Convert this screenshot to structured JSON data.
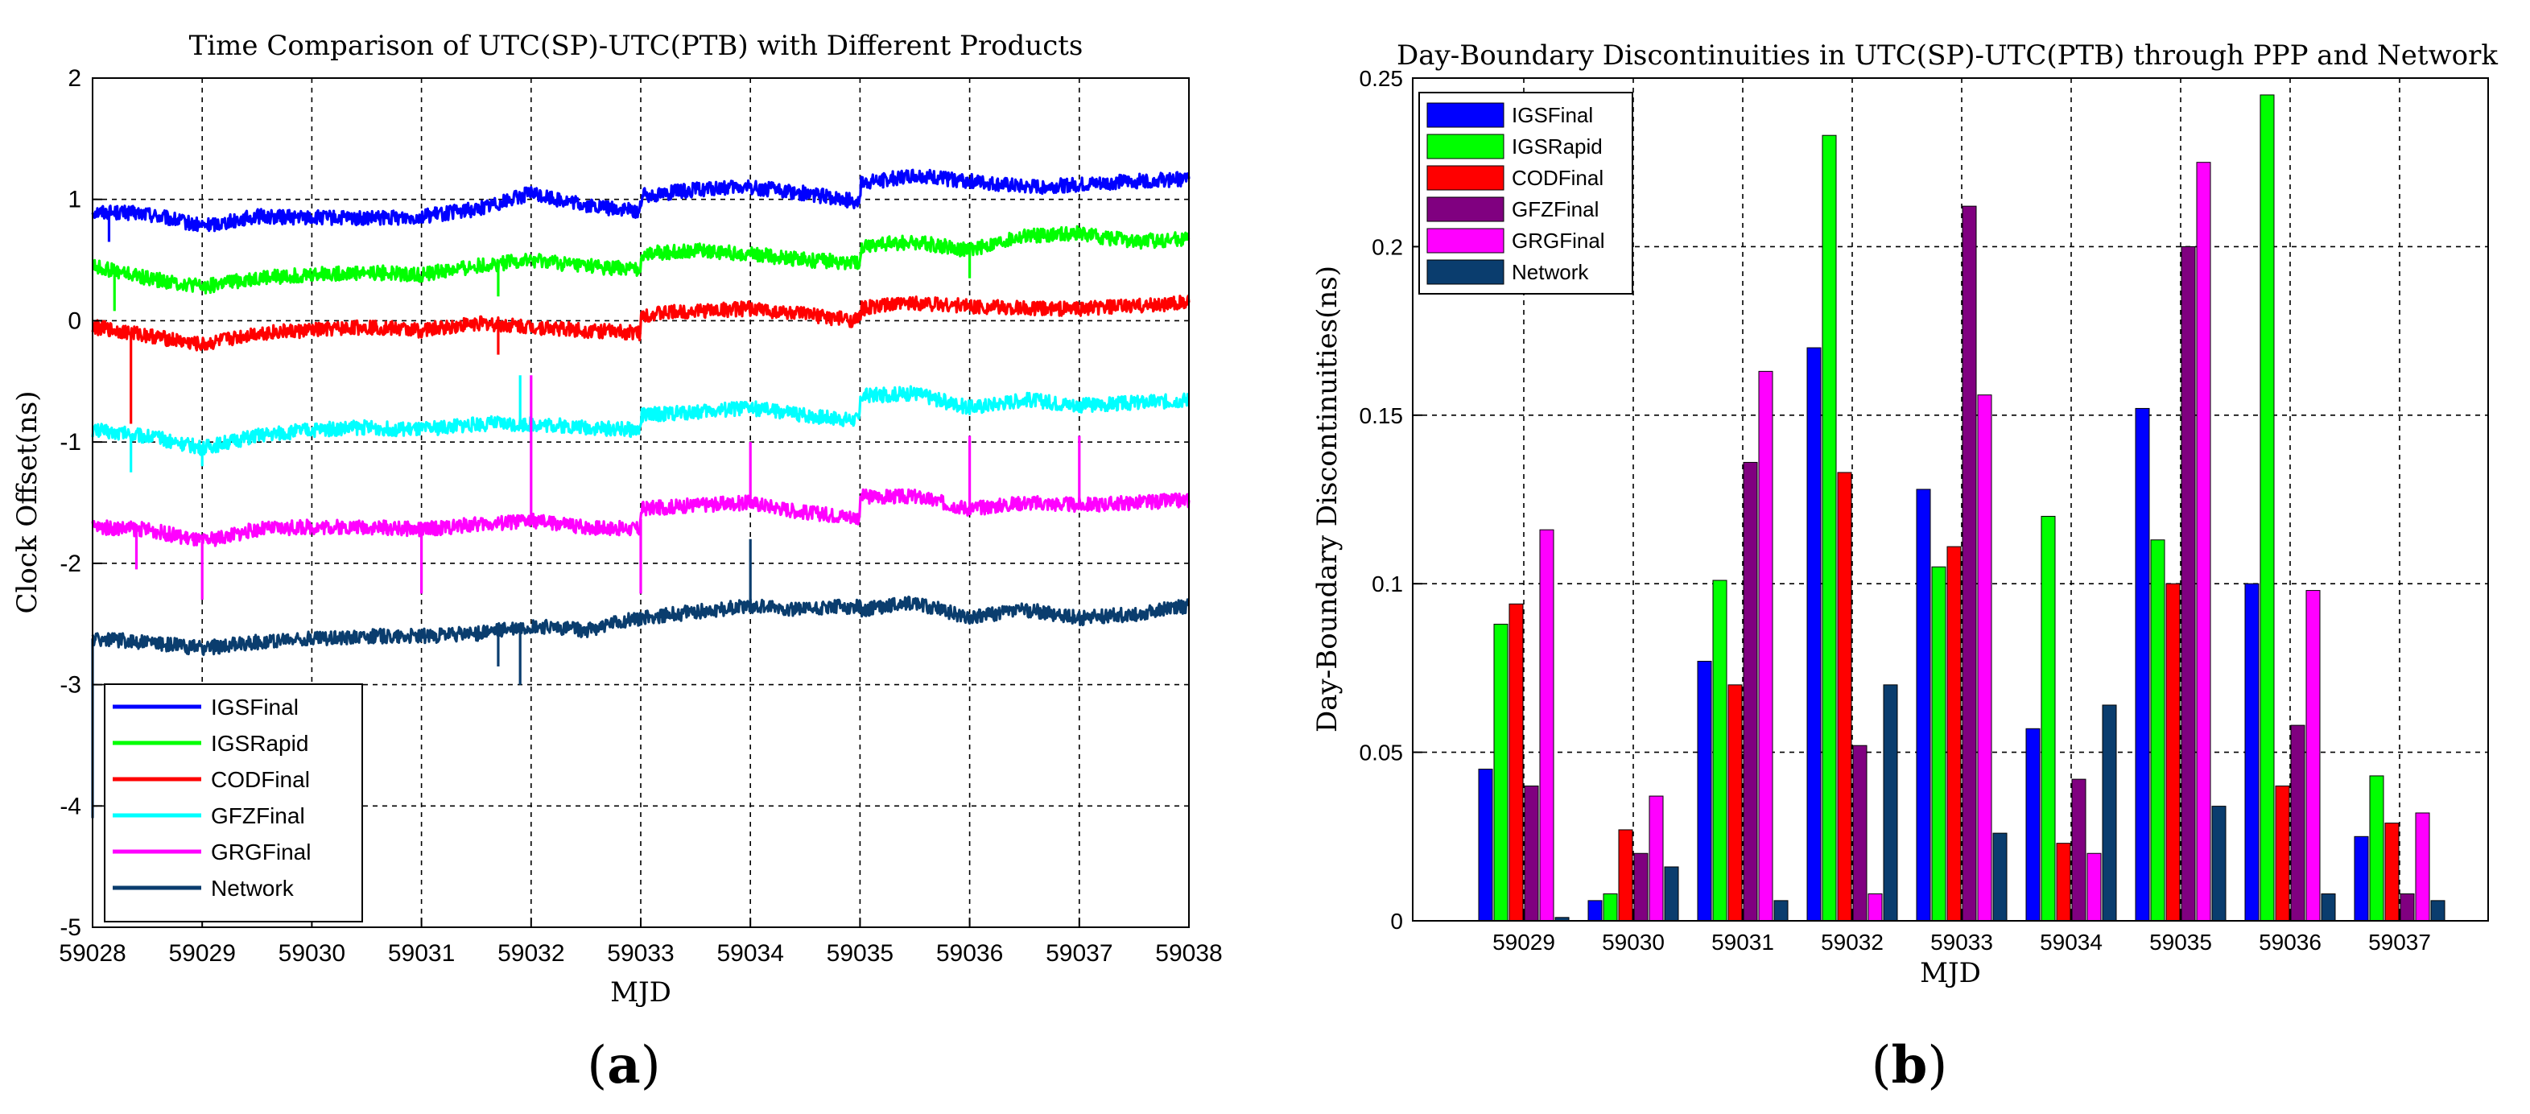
{
  "colors": {
    "IGSFinal": "#0000ff",
    "IGSRapid": "#00ff00",
    "CODFinal": "#ff0000",
    "GFZFinal": "#00ffff",
    "GRGFinal": "#ff00ff",
    "Network": "#0a3d6e",
    "GFZFinal_bar": "#800080",
    "Network_bar": "#0a3d6e"
  },
  "chart_data": [
    {
      "type": "line",
      "title": "Time Comparison of UTC(SP)-UTC(PTB) with Different Products",
      "xlabel": "MJD",
      "ylabel": "Clock Offset(ns)",
      "xlim": [
        59028,
        59038
      ],
      "ylim": [
        -5,
        2
      ],
      "xticks": [
        "59028",
        "59029",
        "59030",
        "59031",
        "59032",
        "59033",
        "59034",
        "59035",
        "59036",
        "59037",
        "59038"
      ],
      "yticks": [
        "2",
        "1",
        "0",
        "-1",
        "-2",
        "-3",
        "-4",
        "-5"
      ],
      "grid": true,
      "legend_position": "bottom-left",
      "series": [
        {
          "name": "IGSFinal",
          "x": [
            59028,
            59028.5,
            59029,
            59029.5,
            59030,
            59030.5,
            59031,
            59031.5,
            59032,
            59032.5,
            59032.99,
            59033.01,
            59033.5,
            59034,
            59034.5,
            59034.99,
            59035.01,
            59035.5,
            59036,
            59036.5,
            59037,
            59037.5,
            59038
          ],
          "y": [
            0.9,
            0.88,
            0.78,
            0.86,
            0.85,
            0.84,
            0.86,
            0.92,
            1.05,
            0.95,
            0.9,
            1.03,
            1.08,
            1.1,
            1.05,
            0.98,
            1.13,
            1.2,
            1.15,
            1.1,
            1.12,
            1.15,
            1.17
          ]
        },
        {
          "name": "IGSRapid",
          "x": [
            59028,
            59028.5,
            59029,
            59029.5,
            59030,
            59030.5,
            59031,
            59031.5,
            59032,
            59032.5,
            59032.99,
            59033.01,
            59033.5,
            59034,
            59034.5,
            59034.99,
            59035.01,
            59035.5,
            59036,
            59036.5,
            59037,
            59037.5,
            59038
          ],
          "y": [
            0.45,
            0.35,
            0.28,
            0.35,
            0.38,
            0.4,
            0.38,
            0.45,
            0.5,
            0.45,
            0.42,
            0.55,
            0.58,
            0.55,
            0.5,
            0.48,
            0.62,
            0.65,
            0.58,
            0.7,
            0.72,
            0.65,
            0.68
          ]
        },
        {
          "name": "CODFinal",
          "x": [
            59028,
            59028.5,
            59029,
            59029.5,
            59030,
            59030.5,
            59031,
            59031.5,
            59032,
            59032.5,
            59032.99,
            59033.01,
            59033.5,
            59034,
            59034.5,
            59034.99,
            59035.01,
            59035.5,
            59036,
            59036.5,
            59037,
            59037.5,
            59038
          ],
          "y": [
            -0.05,
            -0.12,
            -0.2,
            -0.1,
            -0.08,
            -0.05,
            -0.08,
            -0.02,
            -0.05,
            -0.08,
            -0.1,
            0.05,
            0.08,
            0.1,
            0.05,
            0.0,
            0.1,
            0.15,
            0.12,
            0.1,
            0.1,
            0.12,
            0.15
          ]
        },
        {
          "name": "GFZFinal",
          "x": [
            59028,
            59028.5,
            59029,
            59029.5,
            59030,
            59030.5,
            59031,
            59031.5,
            59032,
            59032.5,
            59032.99,
            59033.01,
            59033.5,
            59034,
            59034.5,
            59034.99,
            59035.01,
            59035.5,
            59036,
            59036.5,
            59037,
            59037.5,
            59038
          ],
          "y": [
            -0.9,
            -0.95,
            -1.05,
            -0.95,
            -0.9,
            -0.88,
            -0.9,
            -0.85,
            -0.85,
            -0.88,
            -0.9,
            -0.78,
            -0.75,
            -0.72,
            -0.78,
            -0.82,
            -0.62,
            -0.6,
            -0.72,
            -0.65,
            -0.7,
            -0.68,
            -0.65
          ]
        },
        {
          "name": "GRGFinal",
          "x": [
            59028,
            59028.5,
            59029,
            59029.5,
            59030,
            59030.5,
            59031,
            59031.5,
            59032,
            59032.5,
            59032.99,
            59033.01,
            59033.5,
            59034,
            59034.5,
            59034.99,
            59035.01,
            59035.5,
            59036,
            59036.5,
            59037,
            59037.5,
            59038
          ],
          "y": [
            -1.7,
            -1.72,
            -1.82,
            -1.72,
            -1.7,
            -1.7,
            -1.72,
            -1.68,
            -1.65,
            -1.7,
            -1.72,
            -1.55,
            -1.52,
            -1.5,
            -1.58,
            -1.62,
            -1.45,
            -1.45,
            -1.55,
            -1.5,
            -1.52,
            -1.5,
            -1.48
          ]
        },
        {
          "name": "Network",
          "x": [
            59028,
            59028.5,
            59029,
            59029.5,
            59030,
            59030.5,
            59031,
            59031.5,
            59032,
            59032.5,
            59032.99,
            59033.01,
            59033.5,
            59034,
            59034.5,
            59034.99,
            59035.01,
            59035.5,
            59036,
            59036.5,
            59037,
            59037.5,
            59038
          ],
          "y": [
            -2.62,
            -2.65,
            -2.7,
            -2.65,
            -2.62,
            -2.6,
            -2.6,
            -2.58,
            -2.52,
            -2.55,
            -2.45,
            -2.45,
            -2.4,
            -2.35,
            -2.38,
            -2.35,
            -2.38,
            -2.32,
            -2.45,
            -2.38,
            -2.45,
            -2.42,
            -2.35
          ]
        }
      ],
      "spikes": [
        {
          "series": "IGSFinal",
          "x": 59028.15,
          "y": 0.65
        },
        {
          "series": "IGSRapid",
          "x": 59028.2,
          "y": 0.08
        },
        {
          "series": "IGSRapid",
          "x": 59031.7,
          "y": 0.2
        },
        {
          "series": "IGSRapid",
          "x": 59036,
          "y": 0.35
        },
        {
          "series": "CODFinal",
          "x": 59028.35,
          "y": -0.85
        },
        {
          "series": "CODFinal",
          "x": 59031.7,
          "y": -0.28
        },
        {
          "series": "GFZFinal",
          "x": 59028.35,
          "y": -1.25
        },
        {
          "series": "GFZFinal",
          "x": 59031.9,
          "y": -0.45
        },
        {
          "series": "GFZFinal",
          "x": 59029,
          "y": -1.2
        },
        {
          "series": "GRGFinal",
          "x": 59028.4,
          "y": -2.05
        },
        {
          "series": "GRGFinal",
          "x": 59029,
          "y": -2.3
        },
        {
          "series": "GRGFinal",
          "x": 59031,
          "y": -2.25
        },
        {
          "series": "GRGFinal",
          "x": 59032,
          "y": -0.45
        },
        {
          "series": "GRGFinal",
          "x": 59033,
          "y": -2.25
        },
        {
          "series": "GRGFinal",
          "x": 59034,
          "y": -1.0
        },
        {
          "series": "GRGFinal",
          "x": 59036,
          "y": -0.95
        },
        {
          "series": "GRGFinal",
          "x": 59037,
          "y": -0.95
        },
        {
          "series": "Network",
          "x": 59028,
          "y": -4.1
        },
        {
          "series": "Network",
          "x": 59031.7,
          "y": -2.85
        },
        {
          "series": "Network",
          "x": 59031.9,
          "y": -3.0
        },
        {
          "series": "Network",
          "x": 59034,
          "y": -1.8
        }
      ]
    },
    {
      "type": "bar",
      "title": "Day-Boundary Discontinuities in UTC(SP)-UTC(PTB) through PPP and Network",
      "xlabel": "MJD",
      "ylabel": "Day-Boundary Discontinuities(ns)",
      "ylim": [
        0,
        0.25
      ],
      "yticks": [
        "0",
        "0.05",
        "0.1",
        "0.15",
        "0.2",
        "0.25"
      ],
      "grid": true,
      "legend_position": "top-left",
      "categories": [
        "59029",
        "59030",
        "59031",
        "59032",
        "59033",
        "59034",
        "59035",
        "59036",
        "59037"
      ],
      "series": [
        {
          "name": "IGSFinal",
          "values": [
            0.045,
            0.006,
            0.077,
            0.17,
            0.128,
            0.057,
            0.152,
            0.1,
            0.025
          ]
        },
        {
          "name": "IGSRapid",
          "values": [
            0.088,
            0.008,
            0.101,
            0.233,
            0.105,
            0.12,
            0.113,
            0.245,
            0.043
          ]
        },
        {
          "name": "CODFinal",
          "values": [
            0.094,
            0.027,
            0.07,
            0.133,
            0.111,
            0.023,
            0.1,
            0.04,
            0.029
          ]
        },
        {
          "name": "GFZFinal",
          "values": [
            0.04,
            0.02,
            0.136,
            0.052,
            0.212,
            0.042,
            0.2,
            0.058,
            0.008
          ]
        },
        {
          "name": "GRGFinal",
          "values": [
            0.116,
            0.037,
            0.163,
            0.008,
            0.156,
            0.02,
            0.225,
            0.098,
            0.032
          ]
        },
        {
          "name": "Network",
          "values": [
            0.001,
            0.016,
            0.006,
            0.07,
            0.026,
            0.064,
            0.034,
            0.008,
            0.006
          ]
        }
      ]
    }
  ],
  "panels": {
    "a": {
      "open": "(",
      "letter": "a",
      "close": ")"
    },
    "b": {
      "open": "(",
      "letter": "b",
      "close": ")"
    }
  }
}
